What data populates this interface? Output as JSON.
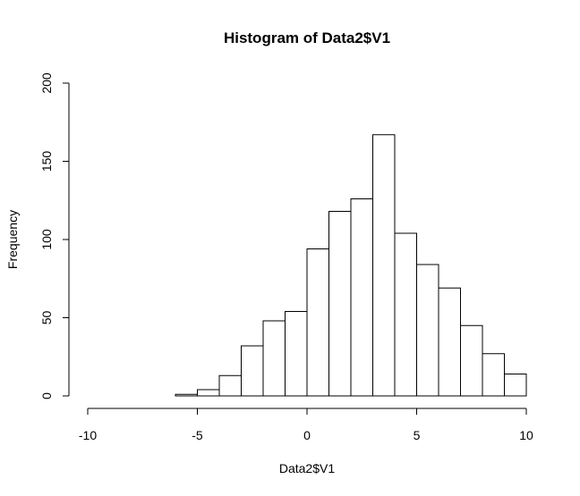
{
  "chart_data": {
    "type": "bar",
    "title": "Histogram of Data2$V1",
    "xlabel": "Data2$V1",
    "ylabel": "Frequency",
    "xlim": [
      -10,
      10
    ],
    "ylim": [
      0,
      200
    ],
    "xticks": [
      -10,
      -5,
      0,
      5,
      10
    ],
    "yticks": [
      0,
      50,
      100,
      150,
      200
    ],
    "bin_width": 1,
    "bins": [
      {
        "x0": -6,
        "x1": -5,
        "count": 1
      },
      {
        "x0": -5,
        "x1": -4,
        "count": 4
      },
      {
        "x0": -4,
        "x1": -3,
        "count": 13
      },
      {
        "x0": -3,
        "x1": -2,
        "count": 32
      },
      {
        "x0": -2,
        "x1": -1,
        "count": 48
      },
      {
        "x0": -1,
        "x1": 0,
        "count": 54
      },
      {
        "x0": 0,
        "x1": 1,
        "count": 94
      },
      {
        "x0": 1,
        "x1": 2,
        "count": 118
      },
      {
        "x0": 2,
        "x1": 3,
        "count": 126
      },
      {
        "x0": 3,
        "x1": 4,
        "count": 167
      },
      {
        "x0": 4,
        "x1": 5,
        "count": 104
      },
      {
        "x0": 5,
        "x1": 6,
        "count": 84
      },
      {
        "x0": 6,
        "x1": 7,
        "count": 69
      },
      {
        "x0": 7,
        "x1": 8,
        "count": 45
      },
      {
        "x0": 8,
        "x1": 9,
        "count": 27
      },
      {
        "x0": 9,
        "x1": 10,
        "count": 14
      }
    ],
    "grid": false,
    "legend": "none"
  }
}
